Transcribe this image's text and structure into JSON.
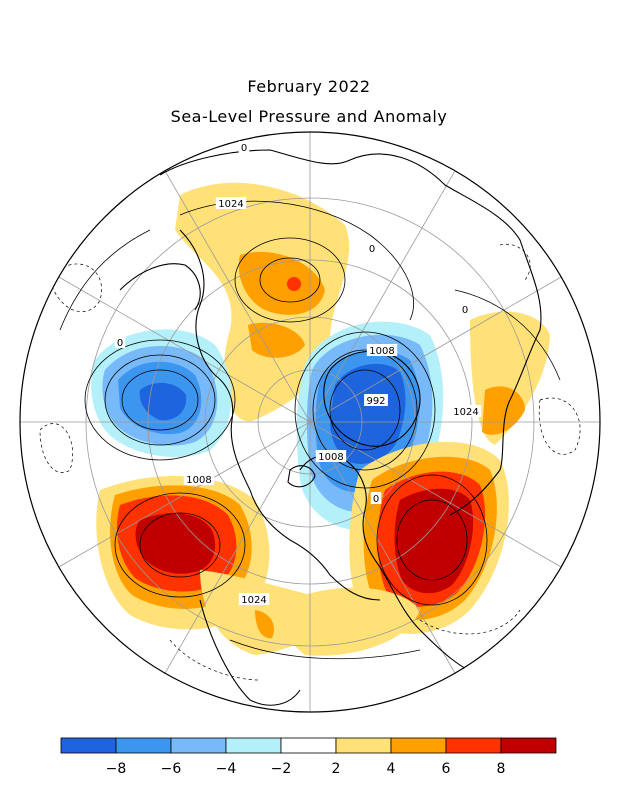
{
  "title": "February 2022",
  "subtitle": "Sea-Level Pressure and Anomaly",
  "colors": {
    "land": "#000000",
    "grid": "#9a9a9a",
    "contour": "#000000",
    "background": "#ffffff"
  },
  "map": {
    "projection": "north-polar-stereographic",
    "contour_labels": [
      {
        "text": "1024",
        "region": "eastern-siberia"
      },
      {
        "text": "0",
        "region": "pacific-arctic"
      },
      {
        "text": "0",
        "region": "north-pacific"
      },
      {
        "text": "1008",
        "region": "canadian-arctic"
      },
      {
        "text": "992",
        "region": "greenland-iceland"
      },
      {
        "text": "1008",
        "region": "north-atlantic"
      },
      {
        "text": "1024",
        "region": "northern-africa"
      },
      {
        "text": "1008",
        "region": "western-europe"
      },
      {
        "text": "1024",
        "region": "central-asia"
      },
      {
        "text": "0",
        "region": "mediterranean"
      },
      {
        "text": "0",
        "region": "tibet"
      },
      {
        "text": "0",
        "region": "western-pacific"
      }
    ]
  },
  "legend": {
    "colors": [
      "#1e64dc",
      "#3c96f0",
      "#78b9fa",
      "#b4f0fa",
      "#ffffff",
      "#ffe178",
      "#ffa000",
      "#ff3200",
      "#c00000"
    ],
    "tick_labels": [
      "−8",
      "−6",
      "−4",
      "−2",
      "2",
      "4",
      "6",
      "8"
    ]
  }
}
